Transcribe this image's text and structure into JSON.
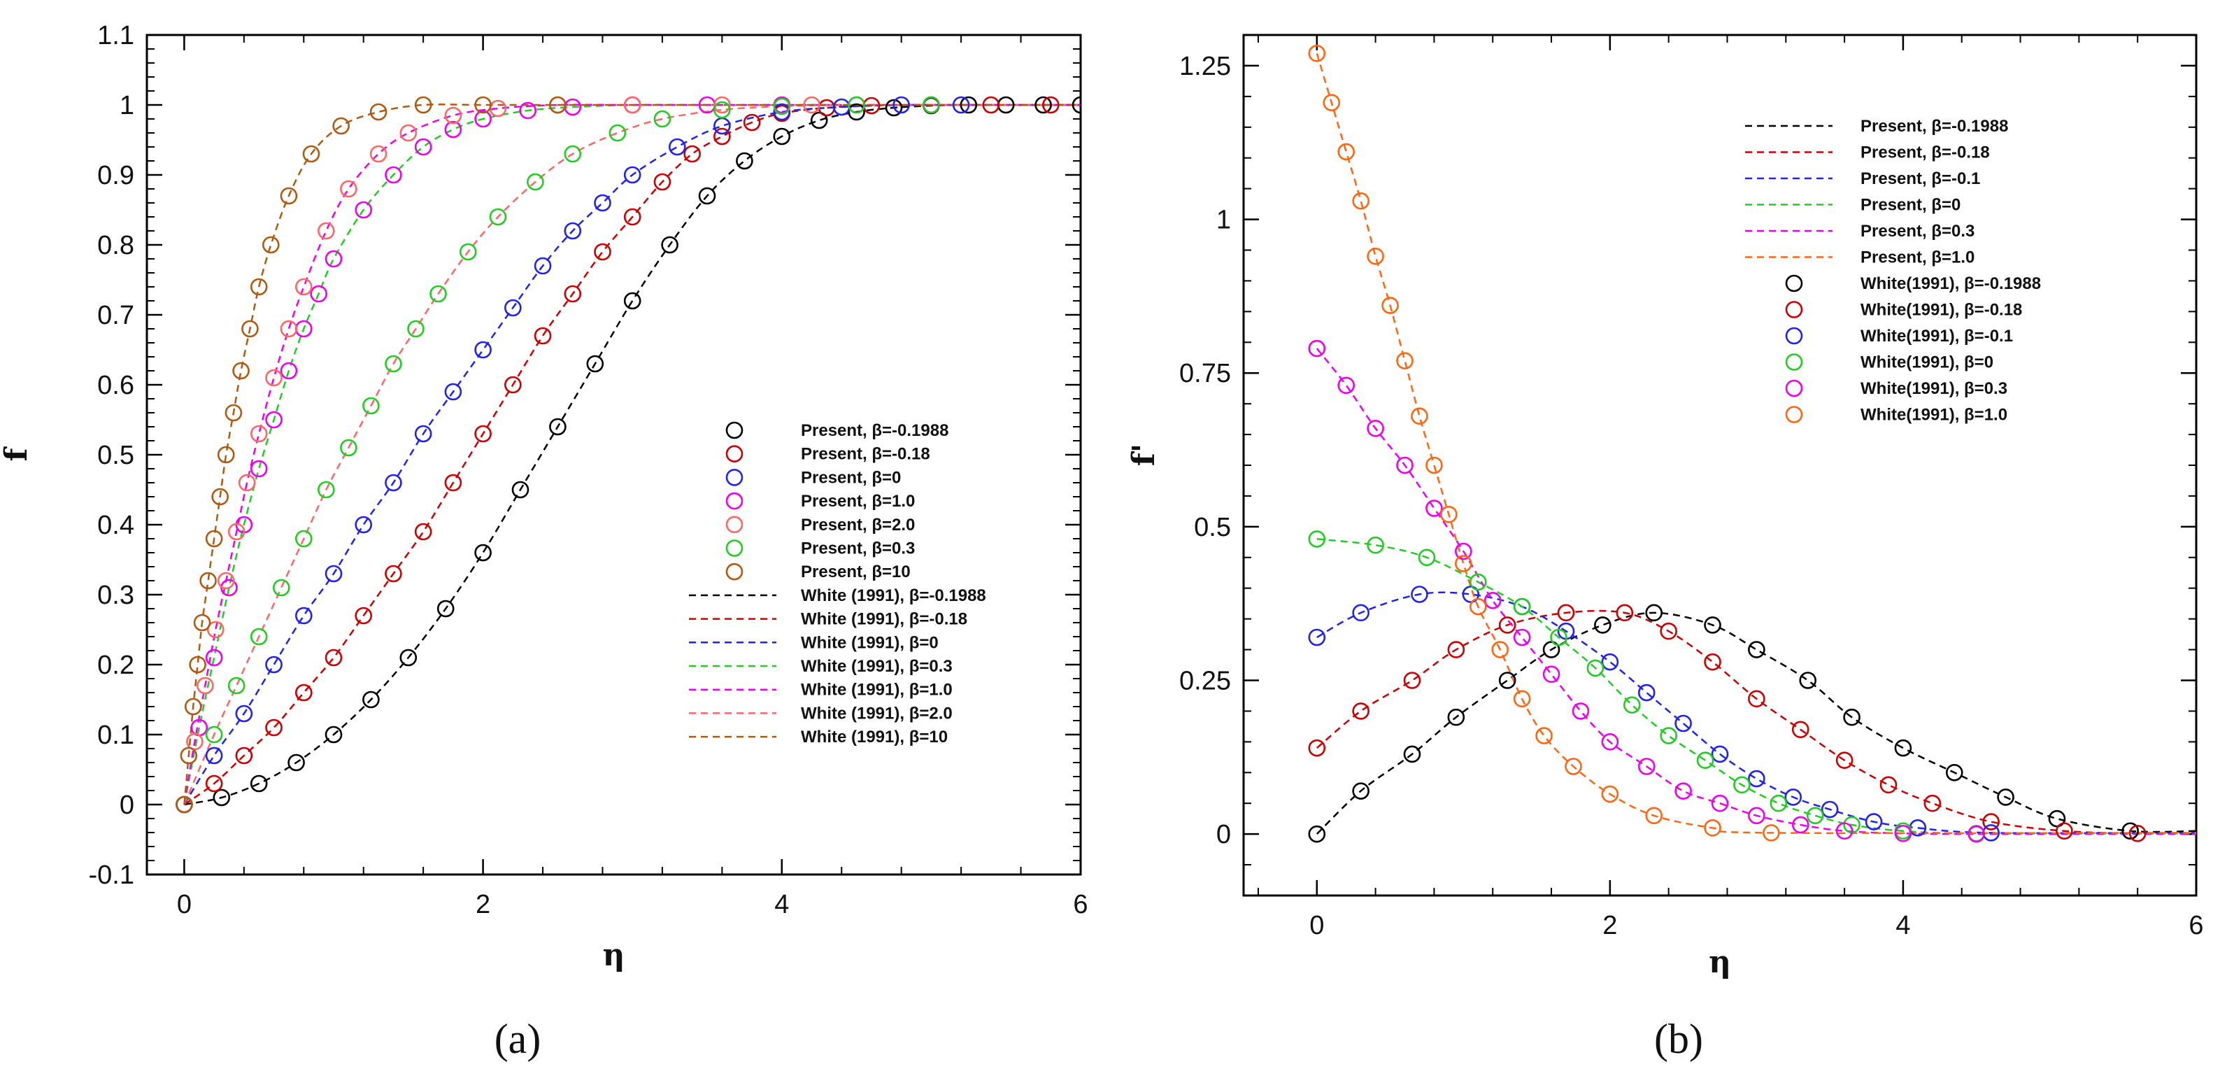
{
  "chart_data": [
    {
      "type": "line",
      "panel_label": "(a)",
      "xlabel": "η",
      "ylabel": "f",
      "xlim": [
        -0.25,
        6
      ],
      "ylim": [
        -0.1,
        1.1
      ],
      "x_ticks": [
        "0",
        "2",
        "4",
        "6"
      ],
      "x_tick_values": [
        0,
        2,
        4,
        6
      ],
      "y_ticks": [
        "-0.1",
        "0",
        "0.1",
        "0.2",
        "0.3",
        "0.4",
        "0.5",
        "0.6",
        "0.7",
        "0.8",
        "0.9",
        "1",
        "1.1"
      ],
      "y_tick_values": [
        -0.1,
        0,
        0.1,
        0.2,
        0.3,
        0.4,
        0.5,
        0.6,
        0.7,
        0.8,
        0.9,
        1.0,
        1.1
      ],
      "legend_position": "center-right",
      "marker_series": [
        {
          "name": "Present, β=-0.1988",
          "color": "#000000",
          "x": [
            0,
            0.25,
            0.5,
            0.75,
            1.0,
            1.25,
            1.5,
            1.75,
            2.0,
            2.25,
            2.5,
            2.75,
            3.0,
            3.25,
            3.5,
            3.75,
            4.0,
            4.25,
            4.5,
            4.75,
            5.0,
            5.25,
            5.5,
            5.75,
            6.0
          ],
          "y": [
            0,
            0.01,
            0.03,
            0.06,
            0.1,
            0.15,
            0.21,
            0.28,
            0.36,
            0.45,
            0.54,
            0.63,
            0.72,
            0.8,
            0.87,
            0.92,
            0.955,
            0.978,
            0.99,
            0.996,
            0.999,
            1.0,
            1.0,
            1.0,
            1.0
          ]
        },
        {
          "name": "Present, β=-0.18",
          "color": "#cc0000",
          "x": [
            0,
            0.2,
            0.4,
            0.6,
            0.8,
            1.0,
            1.2,
            1.4,
            1.6,
            1.8,
            2.0,
            2.2,
            2.4,
            2.6,
            2.8,
            3.0,
            3.2,
            3.4,
            3.6,
            3.8,
            4.0,
            4.3,
            4.6,
            5.0,
            5.4,
            5.8
          ],
          "y": [
            0,
            0.03,
            0.07,
            0.11,
            0.16,
            0.21,
            0.27,
            0.33,
            0.39,
            0.46,
            0.53,
            0.6,
            0.67,
            0.73,
            0.79,
            0.84,
            0.89,
            0.93,
            0.955,
            0.975,
            0.988,
            0.996,
            0.999,
            1.0,
            1.0,
            1.0
          ]
        },
        {
          "name": "Present, β=0",
          "color": "#2222ee",
          "x": [
            0,
            0.2,
            0.4,
            0.6,
            0.8,
            1.0,
            1.2,
            1.4,
            1.6,
            1.8,
            2.0,
            2.2,
            2.4,
            2.6,
            2.8,
            3.0,
            3.3,
            3.6,
            4.0,
            4.4,
            4.8,
            5.2
          ],
          "y": [
            0,
            0.07,
            0.13,
            0.2,
            0.27,
            0.33,
            0.4,
            0.46,
            0.53,
            0.59,
            0.65,
            0.71,
            0.77,
            0.82,
            0.86,
            0.9,
            0.94,
            0.97,
            0.99,
            0.997,
            1.0,
            1.0
          ]
        },
        {
          "name": "Present, β=1.0",
          "color": "#ee00ee",
          "x": [
            0,
            0.1,
            0.2,
            0.3,
            0.4,
            0.5,
            0.6,
            0.7,
            0.8,
            0.9,
            1.0,
            1.2,
            1.4,
            1.6,
            1.8,
            2.0,
            2.3,
            2.6,
            3.0,
            3.5,
            4.0,
            4.5,
            5.0
          ],
          "y": [
            0,
            0.11,
            0.21,
            0.31,
            0.4,
            0.48,
            0.55,
            0.62,
            0.68,
            0.73,
            0.78,
            0.85,
            0.9,
            0.94,
            0.965,
            0.98,
            0.992,
            0.997,
            1.0,
            1.0,
            1.0,
            1.0,
            1.0
          ]
        },
        {
          "name": "Present, β=2.0",
          "color": "#ff6666",
          "x": [
            0,
            0.07,
            0.14,
            0.21,
            0.28,
            0.35,
            0.42,
            0.5,
            0.6,
            0.7,
            0.8,
            0.95,
            1.1,
            1.3,
            1.5,
            1.8,
            2.1,
            2.5,
            3.0,
            3.6,
            4.2
          ],
          "y": [
            0,
            0.09,
            0.17,
            0.25,
            0.32,
            0.39,
            0.46,
            0.53,
            0.61,
            0.68,
            0.74,
            0.82,
            0.88,
            0.93,
            0.96,
            0.985,
            0.995,
            1.0,
            1.0,
            1.0,
            1.0
          ]
        },
        {
          "name": "Present, β=0.3",
          "color": "#22cc22",
          "x": [
            0,
            0.2,
            0.35,
            0.5,
            0.65,
            0.8,
            0.95,
            1.1,
            1.25,
            1.4,
            1.55,
            1.7,
            1.9,
            2.1,
            2.35,
            2.6,
            2.9,
            3.2,
            3.6,
            4.0,
            4.5,
            5.0
          ],
          "y": [
            0,
            0.1,
            0.17,
            0.24,
            0.31,
            0.38,
            0.45,
            0.51,
            0.57,
            0.63,
            0.68,
            0.73,
            0.79,
            0.84,
            0.89,
            0.93,
            0.96,
            0.98,
            0.993,
            0.998,
            1.0,
            1.0
          ]
        },
        {
          "name": "Present, β=10",
          "color": "#b05a10",
          "x": [
            0,
            0.03,
            0.06,
            0.09,
            0.12,
            0.16,
            0.2,
            0.24,
            0.28,
            0.33,
            0.38,
            0.44,
            0.5,
            0.58,
            0.7,
            0.85,
            1.05,
            1.3,
            1.6,
            2.0,
            2.5
          ],
          "y": [
            0,
            0.07,
            0.14,
            0.2,
            0.26,
            0.32,
            0.38,
            0.44,
            0.5,
            0.56,
            0.62,
            0.68,
            0.74,
            0.8,
            0.87,
            0.93,
            0.97,
            0.99,
            1.0,
            1.0,
            1.0
          ]
        }
      ],
      "line_series": [
        {
          "name": "White (1991), β=-0.1988",
          "color": "#000000"
        },
        {
          "name": "White (1991), β=-0.18",
          "color": "#cc0000"
        },
        {
          "name": "White (1991), β=0",
          "color": "#2222ee"
        },
        {
          "name": "White (1991), β=0.3",
          "color": "#22cc22"
        },
        {
          "name": "White (1991), β=1.0",
          "color": "#ee00ee"
        },
        {
          "name": "White (1991), β=2.0",
          "color": "#ff6666"
        },
        {
          "name": "White (1991), β=10",
          "color": "#b05a10"
        }
      ]
    },
    {
      "type": "line",
      "panel_label": "(b)",
      "xlabel": "η",
      "ylabel": "f'",
      "xlim": [
        -0.5,
        6
      ],
      "ylim": [
        -0.1,
        1.3
      ],
      "x_ticks": [
        "0",
        "2",
        "4",
        "6"
      ],
      "x_tick_values": [
        0,
        2,
        4,
        6
      ],
      "y_ticks": [
        "0",
        "0.25",
        "0.5",
        "0.75",
        "1",
        "1.25"
      ],
      "y_tick_values": [
        0,
        0.25,
        0.5,
        0.75,
        1.0,
        1.25
      ],
      "legend_position": "top-right",
      "line_series": [
        {
          "name": "Present, β=-0.1988",
          "color": "#000000"
        },
        {
          "name": "Present, β=-0.18",
          "color": "#cc0000"
        },
        {
          "name": "Present, β=-0.1",
          "color": "#2222ee"
        },
        {
          "name": "Present, β=0",
          "color": "#22cc22"
        },
        {
          "name": "Present, β=0.3",
          "color": "#ee00ee"
        },
        {
          "name": "Present, β=1.0",
          "color": "#ff6610"
        }
      ],
      "marker_series": [
        {
          "name": "White(1991),  β=-0.1988",
          "color": "#000000",
          "x": [
            0,
            0.3,
            0.65,
            0.95,
            1.3,
            1.6,
            1.95,
            2.3,
            2.7,
            3.0,
            3.35,
            3.65,
            4.0,
            4.35,
            4.7,
            5.05,
            5.55
          ],
          "y": [
            0,
            0.07,
            0.13,
            0.19,
            0.25,
            0.3,
            0.34,
            0.36,
            0.34,
            0.3,
            0.25,
            0.19,
            0.14,
            0.1,
            0.06,
            0.025,
            0.005
          ]
        },
        {
          "name": "White(1991), β=-0.18",
          "color": "#cc0000",
          "x": [
            0,
            0.3,
            0.65,
            0.95,
            1.3,
            1.7,
            2.1,
            2.4,
            2.7,
            3.0,
            3.3,
            3.6,
            3.9,
            4.2,
            4.6,
            5.1,
            5.6
          ],
          "y": [
            0.14,
            0.2,
            0.25,
            0.3,
            0.34,
            0.36,
            0.36,
            0.33,
            0.28,
            0.22,
            0.17,
            0.12,
            0.08,
            0.05,
            0.02,
            0.005,
            0.001
          ]
        },
        {
          "name": "White(1991), β=-0.1",
          "color": "#2222ee",
          "x": [
            0,
            0.3,
            0.7,
            1.05,
            1.4,
            1.7,
            2.0,
            2.25,
            2.5,
            2.75,
            3.0,
            3.25,
            3.5,
            3.8,
            4.1,
            4.6
          ],
          "y": [
            0.32,
            0.36,
            0.39,
            0.39,
            0.37,
            0.33,
            0.28,
            0.23,
            0.18,
            0.13,
            0.09,
            0.06,
            0.04,
            0.02,
            0.01,
            0.002
          ]
        },
        {
          "name": "White(1991), β=0",
          "color": "#22cc22",
          "x": [
            0,
            0.4,
            0.75,
            1.1,
            1.4,
            1.65,
            1.9,
            2.15,
            2.4,
            2.65,
            2.9,
            3.15,
            3.4,
            3.65,
            4.0,
            4.5
          ],
          "y": [
            0.48,
            0.47,
            0.45,
            0.41,
            0.37,
            0.32,
            0.27,
            0.21,
            0.16,
            0.12,
            0.08,
            0.05,
            0.03,
            0.015,
            0.005,
            0.001
          ]
        },
        {
          "name": "White(1991), β=0.3",
          "color": "#ee00ee",
          "x": [
            0,
            0.2,
            0.4,
            0.6,
            0.8,
            1.0,
            1.2,
            1.4,
            1.6,
            1.8,
            2.0,
            2.25,
            2.5,
            2.75,
            3.0,
            3.3,
            3.6,
            4.0,
            4.5
          ],
          "y": [
            0.79,
            0.73,
            0.66,
            0.6,
            0.53,
            0.46,
            0.38,
            0.32,
            0.26,
            0.2,
            0.15,
            0.11,
            0.07,
            0.05,
            0.03,
            0.015,
            0.005,
            0.001,
            0.0
          ]
        },
        {
          "name": "White(1991),  β=1.0",
          "color": "#ff6610",
          "x": [
            0,
            0.1,
            0.2,
            0.3,
            0.4,
            0.5,
            0.6,
            0.7,
            0.8,
            0.9,
            1.0,
            1.1,
            1.25,
            1.4,
            1.55,
            1.75,
            2.0,
            2.3,
            2.7,
            3.1
          ],
          "y": [
            1.27,
            1.19,
            1.11,
            1.03,
            0.94,
            0.86,
            0.77,
            0.68,
            0.6,
            0.52,
            0.44,
            0.37,
            0.3,
            0.22,
            0.16,
            0.11,
            0.065,
            0.03,
            0.01,
            0.002
          ]
        }
      ]
    }
  ]
}
